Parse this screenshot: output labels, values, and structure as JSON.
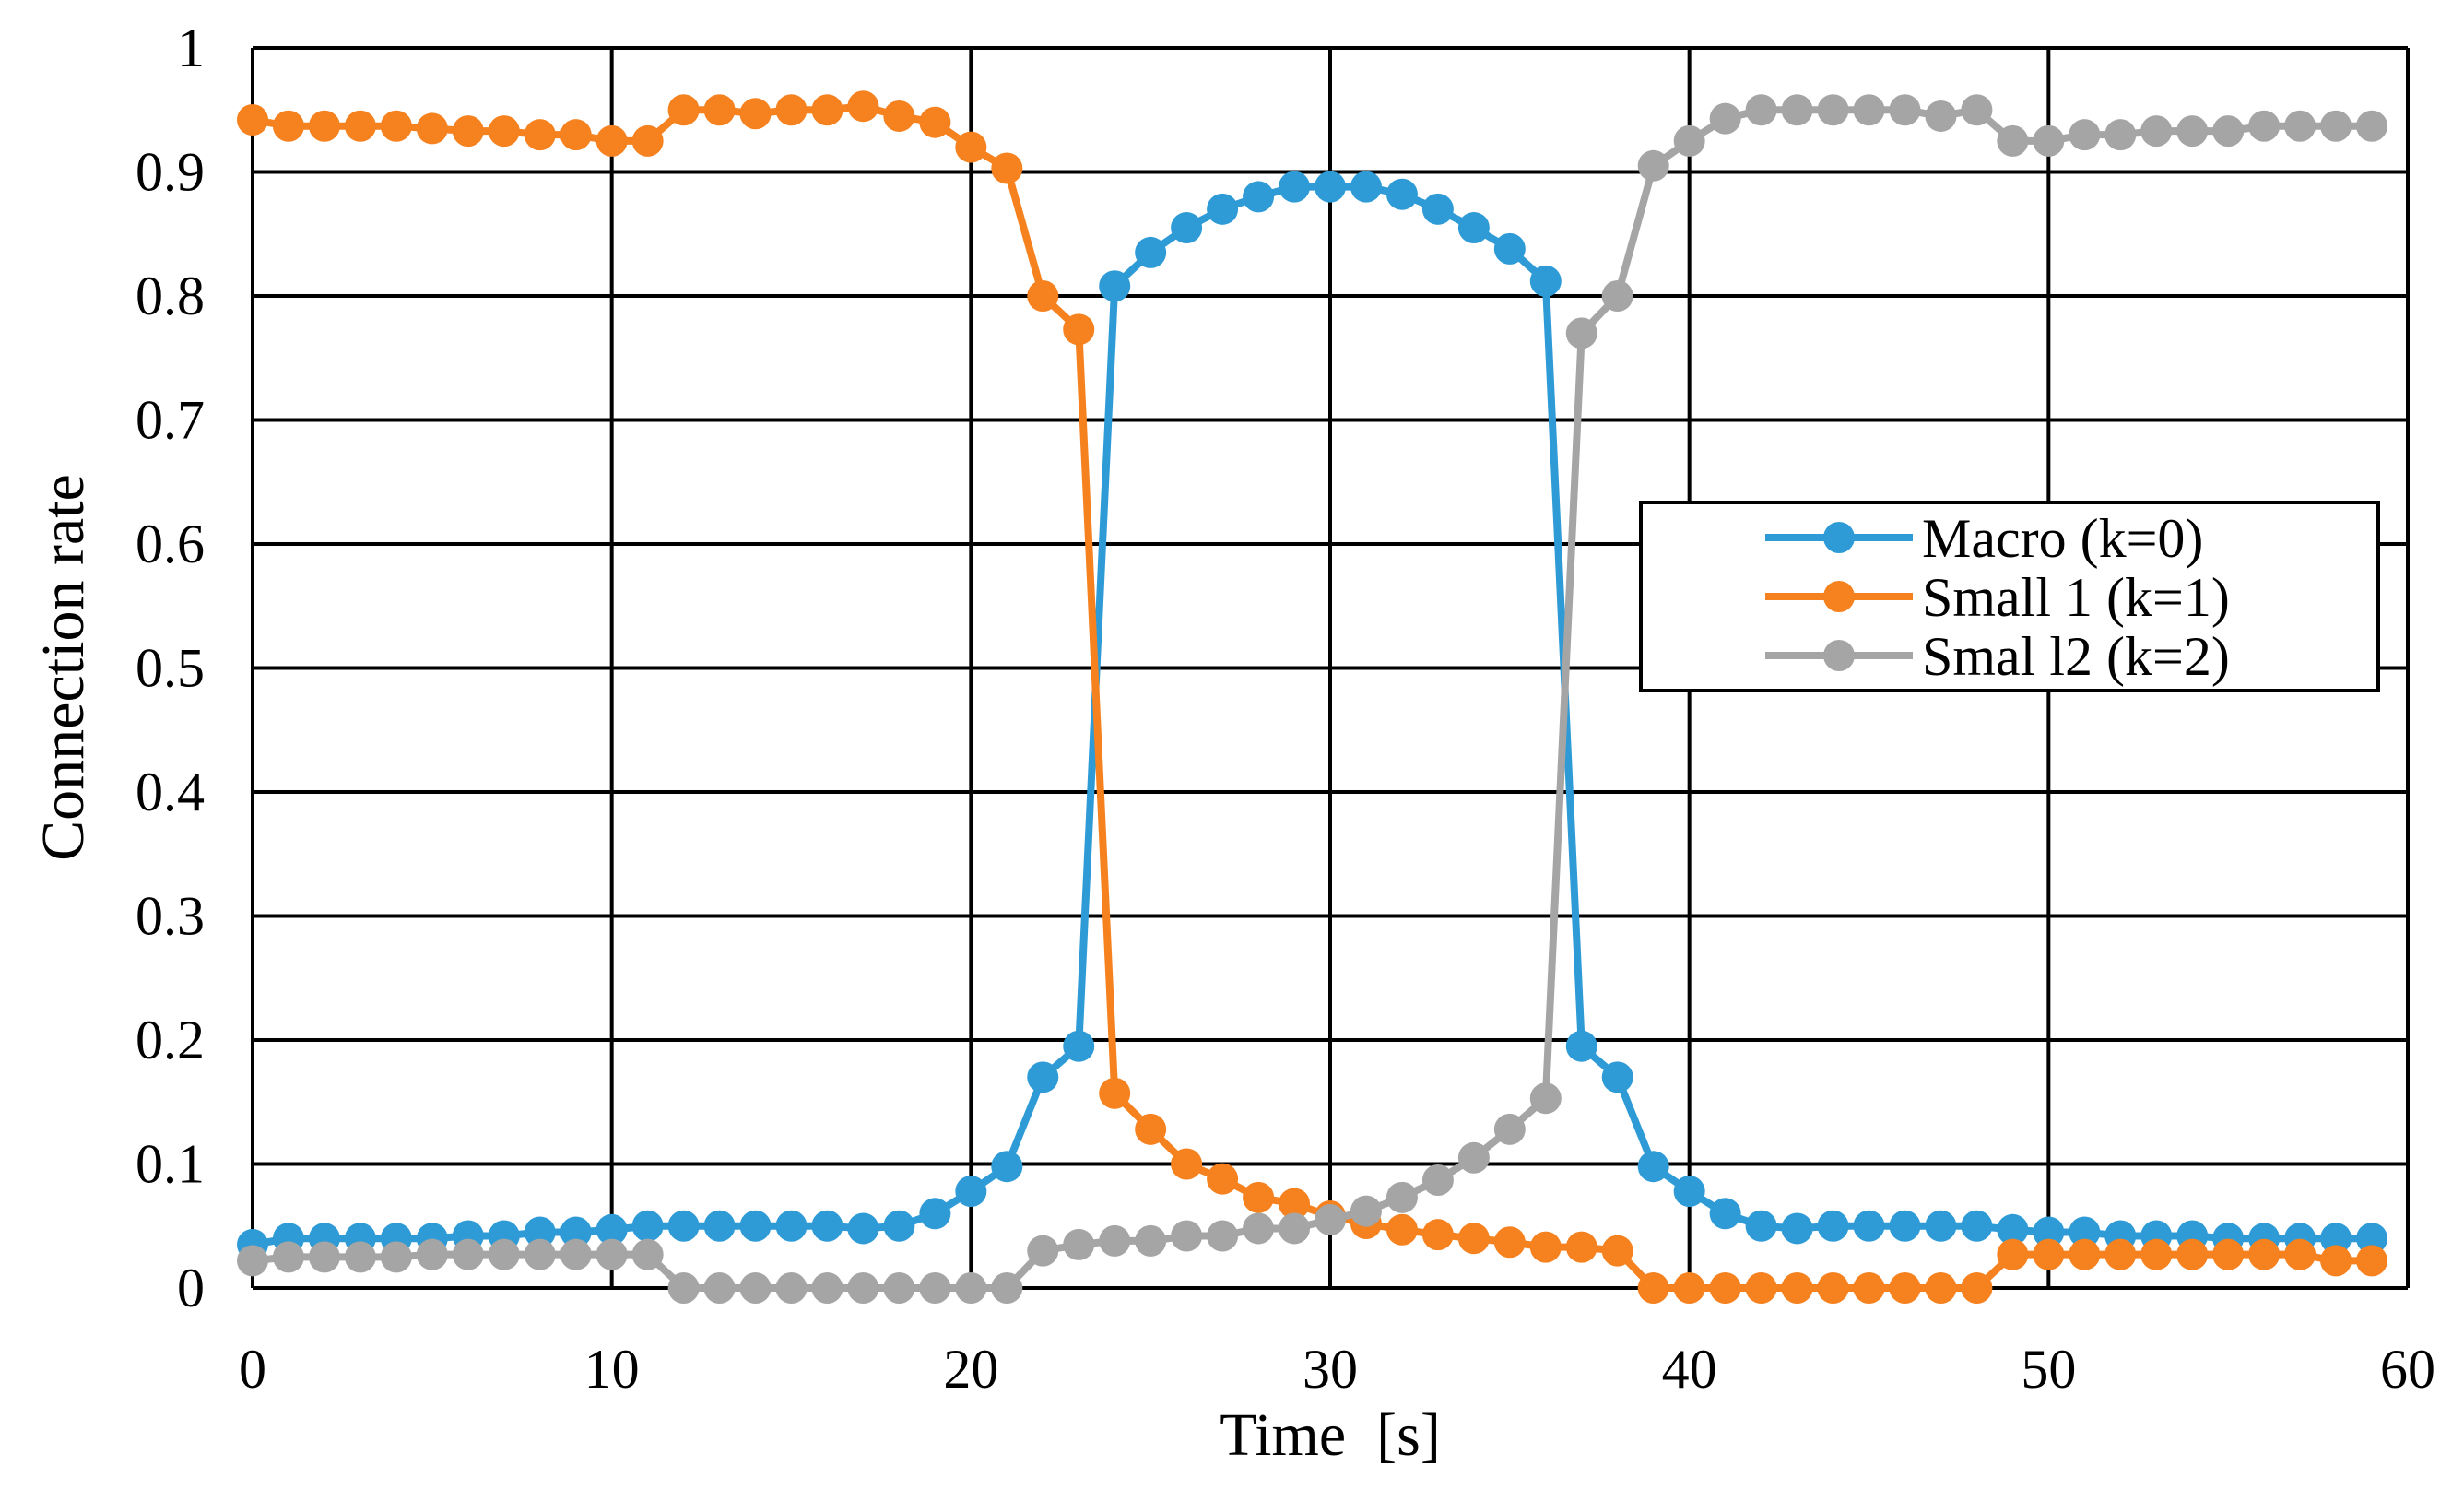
{
  "chart_data": {
    "type": "line",
    "title": "",
    "xlabel": "Time  [s]",
    "ylabel": "Connection rate",
    "xlim": [
      0,
      60
    ],
    "ylim": [
      0,
      1
    ],
    "x_ticks": [
      0,
      10,
      20,
      30,
      40,
      50,
      60
    ],
    "y_ticks": [
      0,
      0.1,
      0.2,
      0.3,
      0.4,
      0.5,
      0.6,
      0.7,
      0.8,
      0.9,
      1
    ],
    "x_tick_labels": [
      "0",
      "10",
      "20",
      "30",
      "40",
      "50",
      "60"
    ],
    "y_tick_labels": [
      "0",
      "0.1",
      "0.2",
      "0.3",
      "0.4",
      "0.5",
      "0.6",
      "0.7",
      "0.8",
      "0.9",
      "1"
    ],
    "grid": true,
    "legend_position": "right",
    "x": [
      0,
      1,
      2,
      3,
      4,
      5,
      6,
      7,
      8,
      9,
      10,
      11,
      12,
      13,
      14,
      15,
      16,
      17,
      18,
      19,
      20,
      21,
      22,
      23,
      24,
      25,
      26,
      27,
      28,
      29,
      30,
      31,
      32,
      33,
      34,
      35,
      36,
      37,
      38,
      39,
      40,
      41,
      42,
      43,
      44,
      45,
      46,
      47,
      48,
      49,
      50,
      51,
      52,
      53,
      54,
      55,
      56,
      57,
      58,
      59
    ],
    "series": [
      {
        "name": "Macro (k=0)",
        "color": "#2E9BD6",
        "values": [
          0.035,
          0.04,
          0.04,
          0.04,
          0.04,
          0.04,
          0.042,
          0.042,
          0.045,
          0.045,
          0.047,
          0.05,
          0.05,
          0.05,
          0.05,
          0.05,
          0.05,
          0.048,
          0.05,
          0.06,
          0.078,
          0.098,
          0.17,
          0.195,
          0.808,
          0.835,
          0.855,
          0.87,
          0.88,
          0.888,
          0.888,
          0.888,
          0.882,
          0.87,
          0.855,
          0.838,
          0.812,
          0.195,
          0.17,
          0.098,
          0.078,
          0.06,
          0.05,
          0.048,
          0.05,
          0.05,
          0.05,
          0.05,
          0.05,
          0.047,
          0.045,
          0.045,
          0.042,
          0.042,
          0.042,
          0.04,
          0.04,
          0.04,
          0.04,
          0.04
        ]
      },
      {
        "name": "Small 1 (k=1)",
        "color": "#F5811F",
        "values": [
          0.942,
          0.937,
          0.937,
          0.937,
          0.937,
          0.935,
          0.933,
          0.933,
          0.93,
          0.93,
          0.925,
          0.925,
          0.95,
          0.95,
          0.947,
          0.95,
          0.95,
          0.953,
          0.945,
          0.94,
          0.92,
          0.903,
          0.8,
          0.773,
          0.157,
          0.128,
          0.1,
          0.088,
          0.073,
          0.068,
          0.058,
          0.052,
          0.047,
          0.043,
          0.04,
          0.037,
          0.033,
          0.033,
          0.03,
          0.0,
          0.0,
          0.0,
          0.0,
          0.0,
          0.0,
          0.0,
          0.0,
          0.0,
          0.0,
          0.027,
          0.027,
          0.027,
          0.027,
          0.027,
          0.027,
          0.027,
          0.027,
          0.027,
          0.022,
          0.022
        ]
      },
      {
        "name": "Smal l2 (k=2)",
        "color": "#A5A5A5",
        "values": [
          0.022,
          0.025,
          0.025,
          0.025,
          0.025,
          0.027,
          0.027,
          0.027,
          0.027,
          0.027,
          0.027,
          0.027,
          0.0,
          0.0,
          0.0,
          0.0,
          0.0,
          0.0,
          0.0,
          0.0,
          0.0,
          0.0,
          0.03,
          0.035,
          0.038,
          0.038,
          0.042,
          0.042,
          0.048,
          0.048,
          0.055,
          0.062,
          0.073,
          0.087,
          0.105,
          0.128,
          0.153,
          0.77,
          0.8,
          0.905,
          0.925,
          0.943,
          0.95,
          0.95,
          0.95,
          0.95,
          0.95,
          0.945,
          0.95,
          0.925,
          0.925,
          0.93,
          0.93,
          0.933,
          0.933,
          0.933,
          0.937,
          0.937,
          0.937,
          0.937
        ]
      }
    ]
  }
}
